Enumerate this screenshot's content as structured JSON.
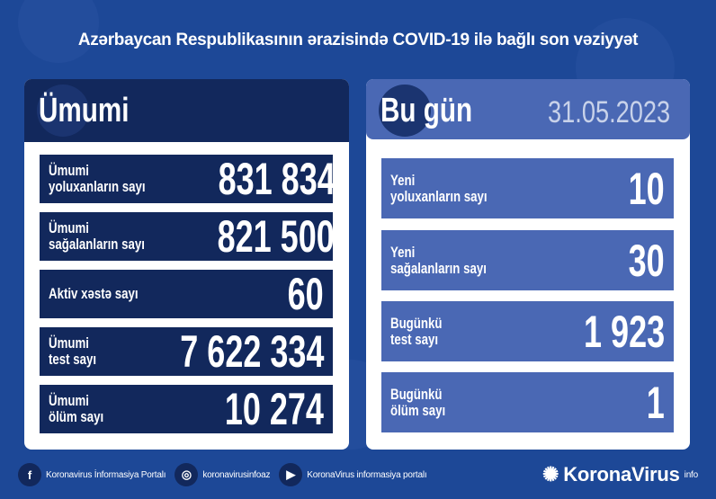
{
  "title": "Azərbaycan Respublikasının ərazisində COVID-19 ilə bağlı son vəziyyət",
  "left": {
    "heading": "Ümumi",
    "rows": [
      {
        "l1": "Ümumi",
        "l2": "yoluxanların sayı",
        "value": "831 834"
      },
      {
        "l1": "Ümumi",
        "l2": "sağalanların sayı",
        "value": "821 500"
      },
      {
        "l1": "Aktiv xəstə sayı",
        "l2": "",
        "value": "60"
      },
      {
        "l1": "Ümumi",
        "l2": "test sayı",
        "value": "7 622 334"
      },
      {
        "l1": "Ümumi",
        "l2": "ölüm sayı",
        "value": "10 274"
      }
    ]
  },
  "right": {
    "heading": "Bu gün",
    "date": "31.05.2023",
    "rows": [
      {
        "l1": "Yeni",
        "l2": "yoluxanların sayı",
        "value": "10"
      },
      {
        "l1": "Yeni",
        "l2": "sağalanların sayı",
        "value": "30"
      },
      {
        "l1": "Bugünkü",
        "l2": "test sayı",
        "value": "1 923"
      },
      {
        "l1": "Bugünkü",
        "l2": "ölüm sayı",
        "value": "1"
      }
    ]
  },
  "footer": {
    "facebook": "Koronavirus İnformasiya Portalı",
    "instagram": "koronavirusinfoaz",
    "youtube": "KoronaVirus informasiya portalı",
    "brand": "KoronaVirus",
    "brand_sup": "info"
  },
  "colors": {
    "background": "#1d4897",
    "dark_box": "#12285c",
    "light_box": "#4a68b4"
  }
}
